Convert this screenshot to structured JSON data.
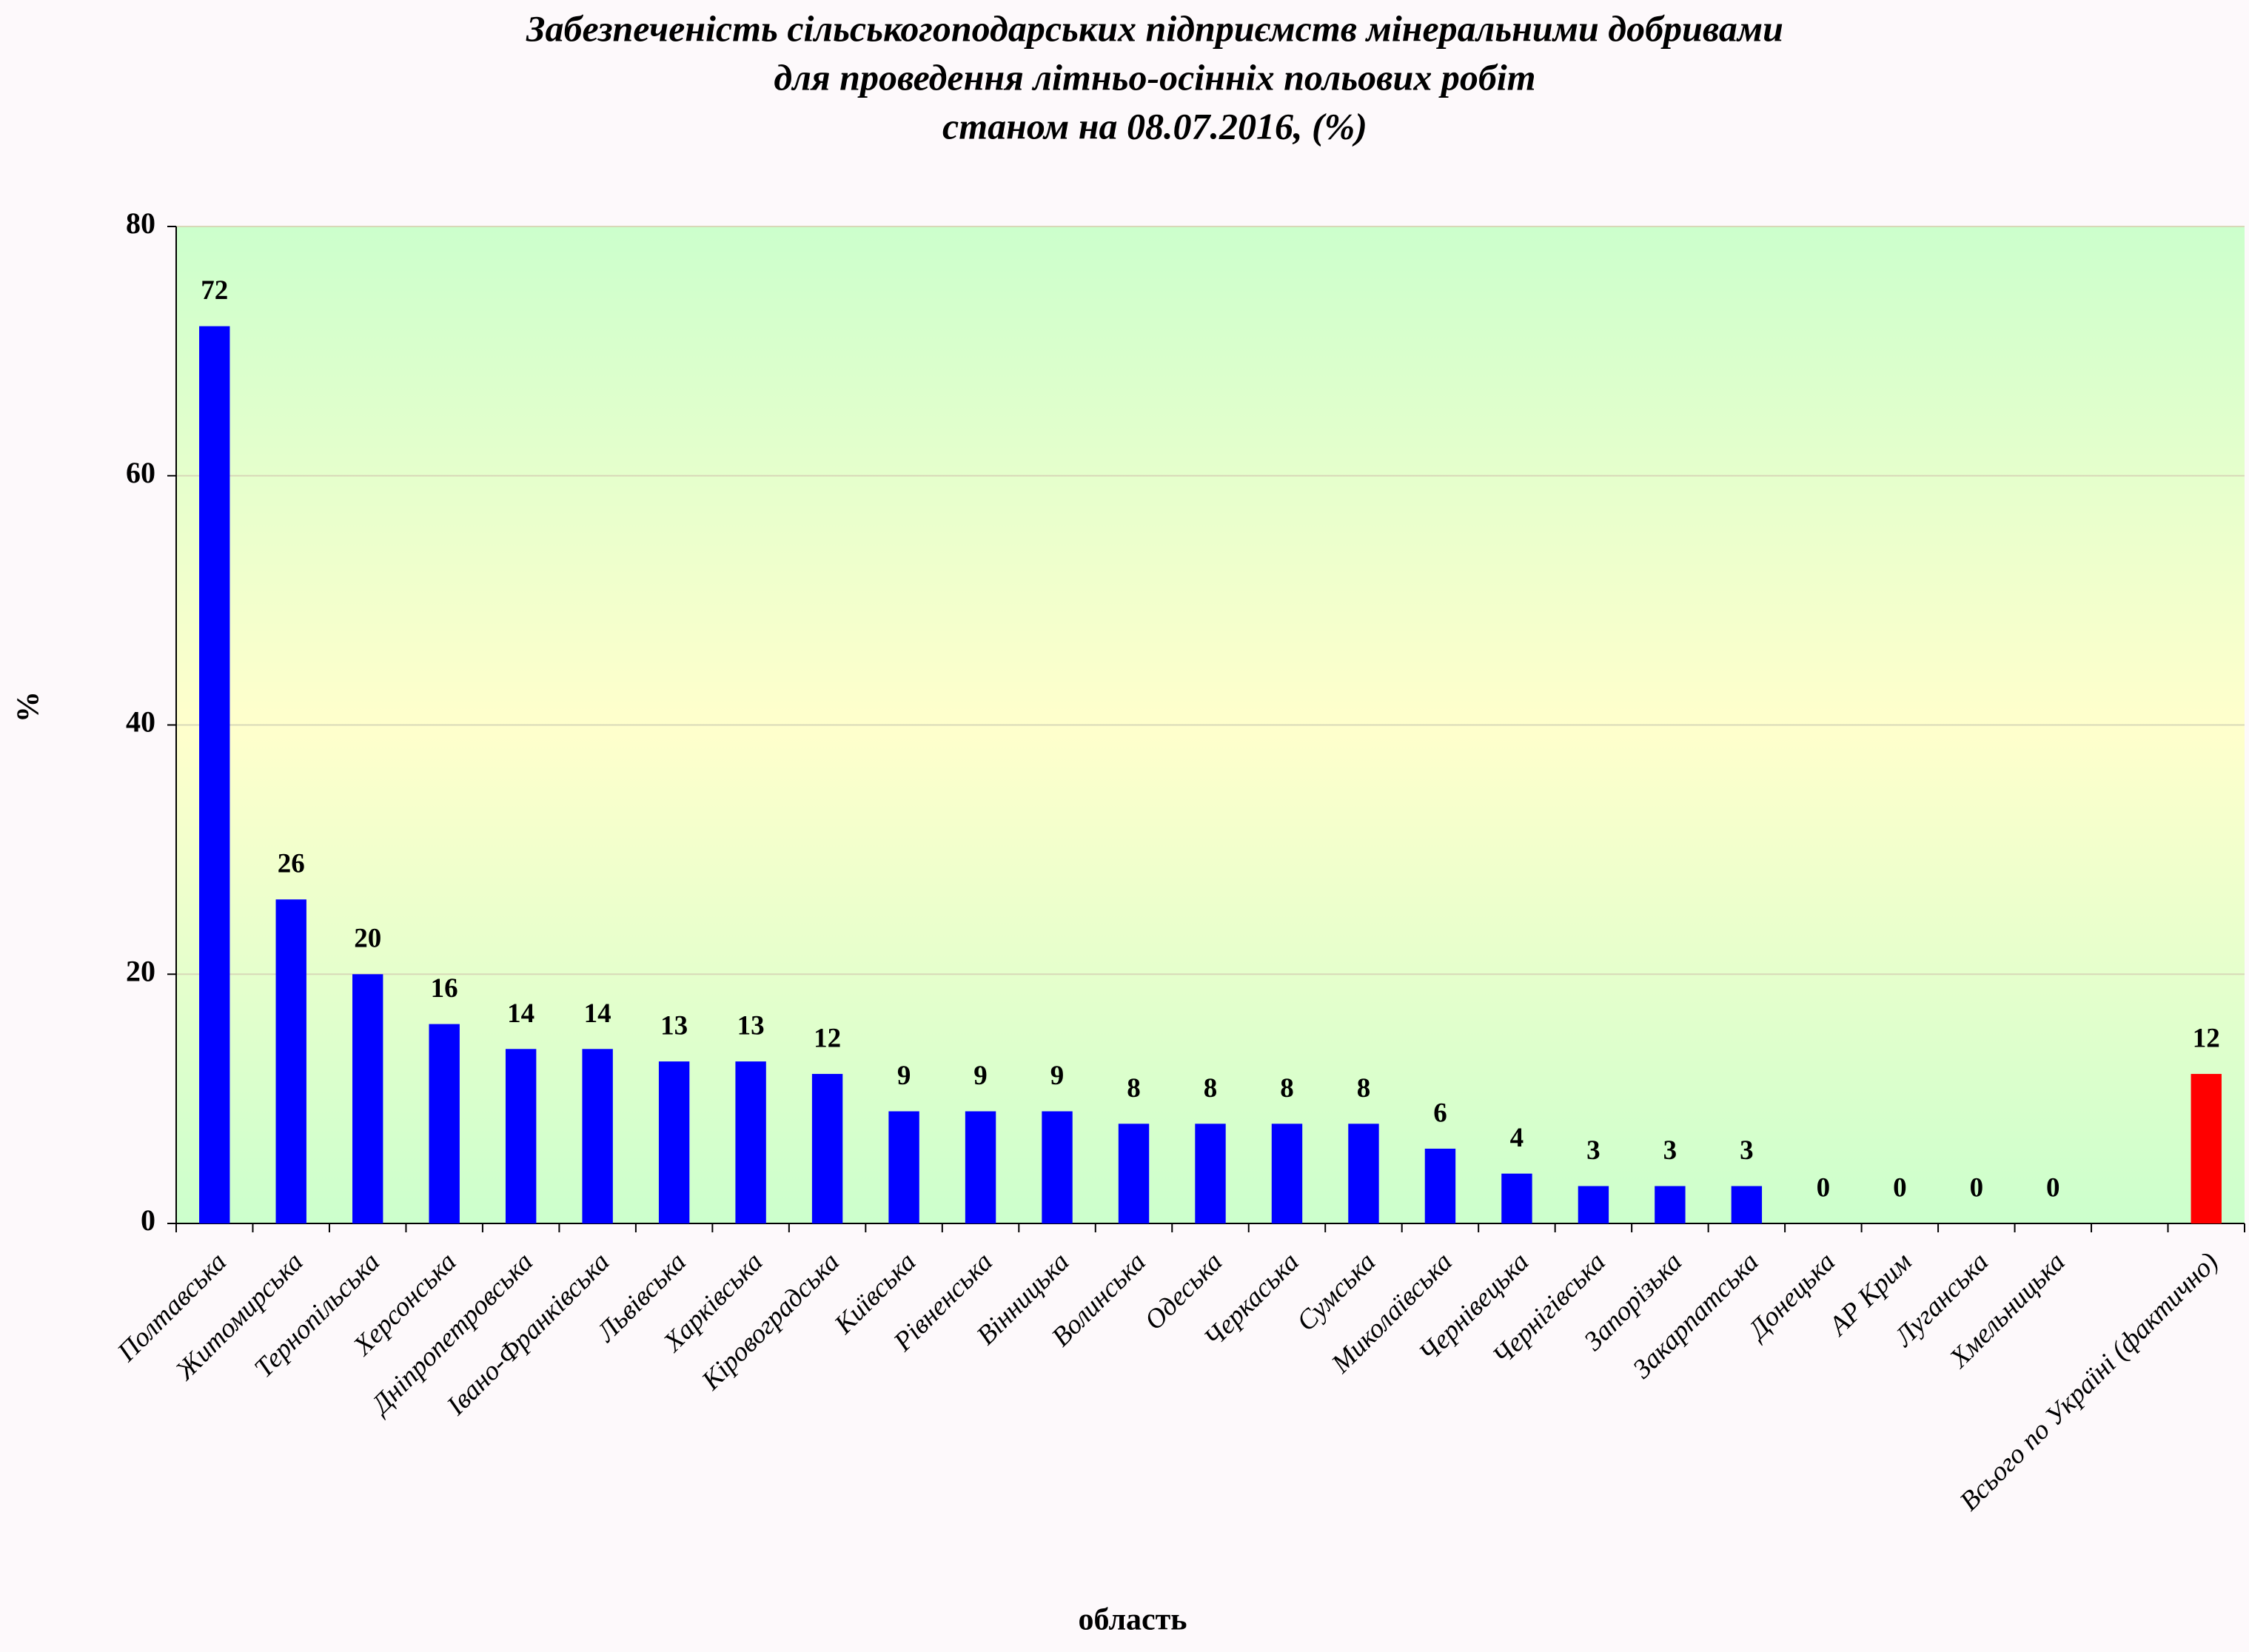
{
  "chart_data": {
    "type": "bar",
    "title": [
      "Забезпеченість сільськогоподарських підприємств мінеральними добривами",
      "для проведення  літньо-осінніх польових робіт",
      "станом на  08.07.2016, (%)"
    ],
    "x_label": "область",
    "y_label": "%",
    "categories": [
      "Полтавська",
      "Житомирська",
      "Тернопільська",
      "Херсонська",
      "Дніпропетровська",
      "Івано-Франківська",
      "Львівська",
      "Харківська",
      "Кіровоградська",
      "Київська",
      "Рівненська",
      "Вінницька",
      "Волинська",
      "Одеська",
      "Черкаська",
      "Сумська",
      "Миколаївська",
      "Чернівецька",
      "Чернігівська",
      "Запорізька",
      "Закарпатська",
      "Донецька",
      "АР Крим",
      "Луганська",
      "Хмельницька",
      null,
      "Всього по Україні (фактично)"
    ],
    "values": [
      72,
      26,
      20,
      16,
      14,
      14,
      13,
      13,
      12,
      9,
      9,
      9,
      8,
      8,
      8,
      8,
      6,
      4,
      3,
      3,
      3,
      0,
      0,
      0,
      0,
      null,
      12
    ],
    "colors": [
      "#0000ff",
      "#0000ff",
      "#0000ff",
      "#0000ff",
      "#0000ff",
      "#0000ff",
      "#0000ff",
      "#0000ff",
      "#0000ff",
      "#0000ff",
      "#0000ff",
      "#0000ff",
      "#0000ff",
      "#0000ff",
      "#0000ff",
      "#0000ff",
      "#0000ff",
      "#0000ff",
      "#0000ff",
      "#0000ff",
      "#0000ff",
      "#0000ff",
      "#0000ff",
      "#0000ff",
      "#0000ff",
      null,
      "#ff0000"
    ],
    "ylim": [
      0,
      80
    ],
    "yticks": [
      0,
      20,
      40,
      60,
      80
    ],
    "grid": true
  }
}
